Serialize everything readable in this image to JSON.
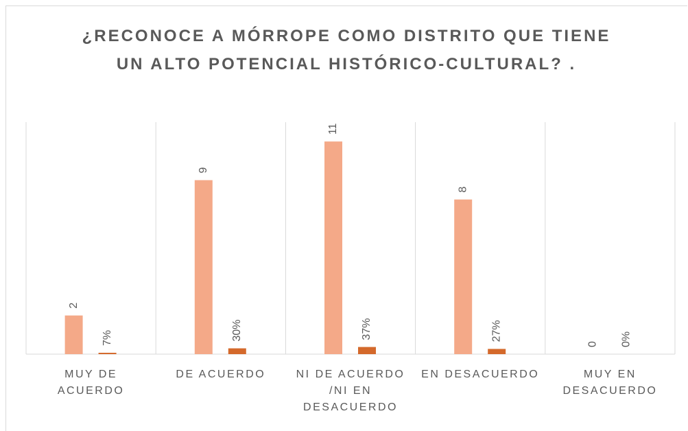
{
  "chart_data": {
    "type": "bar",
    "title": "¿RECONOCE A MÓRROPE COMO DISTRITO QUE TIENE UN ALTO POTENCIAL HISTÓRICO-CULTURAL? .",
    "categories": [
      "MUY DE ACUERDO",
      "DE ACUERDO",
      "NI DE ACUERDO /NI EN DESACUERDO",
      "EN DESACUERDO",
      "MUY EN DESACUERDO"
    ],
    "series": [
      {
        "color": "#f4a988",
        "values": [
          2,
          9,
          11,
          8,
          0
        ]
      },
      {
        "color": "#d4692b",
        "values": [
          0.07,
          0.3,
          0.37,
          0.27,
          0
        ],
        "value_labels": [
          "7%",
          "30%",
          "37%",
          "27%",
          "0%"
        ]
      }
    ],
    "ylim": [
      0,
      12
    ],
    "grid": true
  }
}
